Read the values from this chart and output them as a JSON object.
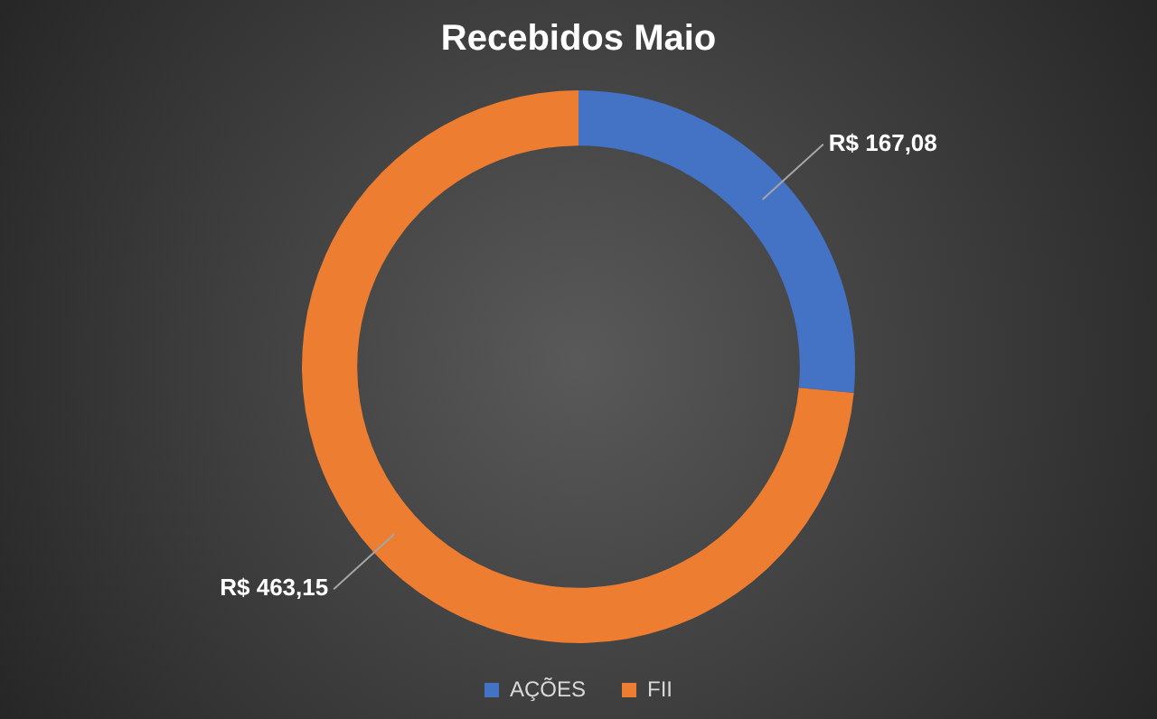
{
  "chart_data": {
    "type": "donut",
    "title": "Recebidos Maio",
    "categories": [
      "AÇÕES",
      "FII"
    ],
    "values": [
      167.08,
      463.15
    ],
    "colors": [
      "#4472c4",
      "#ed7d31"
    ],
    "value_labels": [
      "R$ 167,08",
      "R$ 463,15"
    ],
    "legend": "bottom"
  }
}
